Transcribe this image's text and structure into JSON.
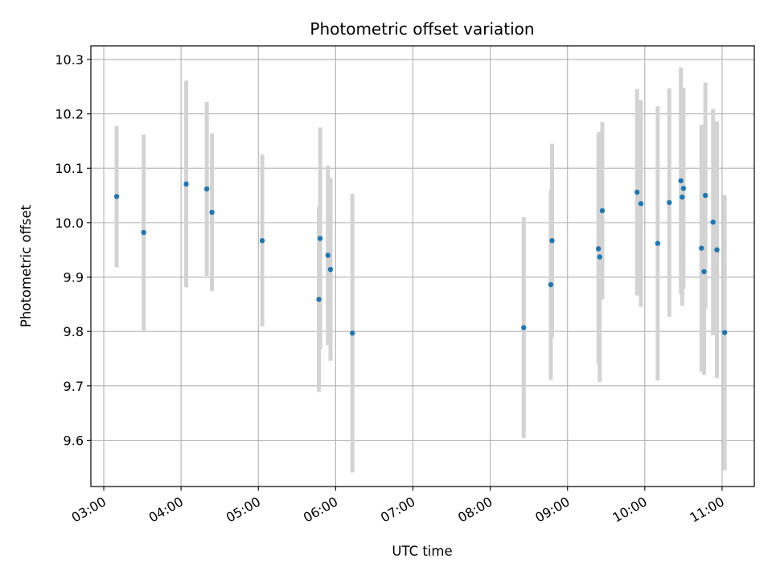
{
  "chart_data": {
    "type": "scatter",
    "title": "Photometric offset variation",
    "xlabel": "UTC time",
    "ylabel": "Photometric offset",
    "xlim": [
      "02:50",
      "11:25"
    ],
    "ylim": [
      9.515,
      10.325
    ],
    "grid": true,
    "x_ticks": [
      "03:00",
      "04:00",
      "05:00",
      "06:00",
      "07:00",
      "08:00",
      "09:00",
      "10:00",
      "11:00"
    ],
    "y_ticks": [
      9.6,
      9.7,
      9.8,
      9.9,
      10.0,
      10.1,
      10.2,
      10.3
    ],
    "y_tick_labels": [
      "9.6",
      "9.7",
      "9.8",
      "9.9",
      "10.0",
      "10.1",
      "10.2",
      "10.3"
    ],
    "marker_color": "#1f77b4",
    "errorbar_color": "#d3d3d3",
    "points": [
      {
        "x": "03:10",
        "y": 10.048,
        "err": 0.13
      },
      {
        "x": "03:31",
        "y": 9.982,
        "err": 0.18
      },
      {
        "x": "04:04",
        "y": 10.071,
        "err": 0.19
      },
      {
        "x": "04:20",
        "y": 10.062,
        "err": 0.16
      },
      {
        "x": "04:24",
        "y": 10.019,
        "err": 0.145
      },
      {
        "x": "05:03",
        "y": 9.967,
        "err": 0.158
      },
      {
        "x": "05:47",
        "y": 9.859,
        "err": 0.17
      },
      {
        "x": "05:48",
        "y": 9.971,
        "err": 0.204
      },
      {
        "x": "05:54",
        "y": 9.94,
        "err": 0.165
      },
      {
        "x": "05:56",
        "y": 9.914,
        "err": 0.168
      },
      {
        "x": "06:13",
        "y": 9.797,
        "err": 0.256
      },
      {
        "x": "08:26",
        "y": 9.807,
        "err": 0.203
      },
      {
        "x": "08:47",
        "y": 9.886,
        "err": 0.175
      },
      {
        "x": "08:48",
        "y": 9.967,
        "err": 0.178
      },
      {
        "x": "09:24",
        "y": 9.952,
        "err": 0.212
      },
      {
        "x": "09:25",
        "y": 9.937,
        "err": 0.23
      },
      {
        "x": "09:27",
        "y": 10.022,
        "err": 0.163
      },
      {
        "x": "09:54",
        "y": 10.056,
        "err": 0.19
      },
      {
        "x": "09:57",
        "y": 10.035,
        "err": 0.19
      },
      {
        "x": "10:10",
        "y": 9.962,
        "err": 0.252
      },
      {
        "x": "10:19",
        "y": 10.037,
        "err": 0.21
      },
      {
        "x": "10:28",
        "y": 10.077,
        "err": 0.208
      },
      {
        "x": "10:29",
        "y": 10.047,
        "err": 0.2
      },
      {
        "x": "10:30",
        "y": 10.063,
        "err": 0.185
      },
      {
        "x": "10:44",
        "y": 9.953,
        "err": 0.227
      },
      {
        "x": "10:46",
        "y": 9.91,
        "err": 0.19
      },
      {
        "x": "10:47",
        "y": 10.05,
        "err": 0.208
      },
      {
        "x": "10:53",
        "y": 10.001,
        "err": 0.208
      },
      {
        "x": "10:56",
        "y": 9.95,
        "err": 0.236
      },
      {
        "x": "11:02",
        "y": 9.798,
        "err": 0.253
      }
    ]
  }
}
